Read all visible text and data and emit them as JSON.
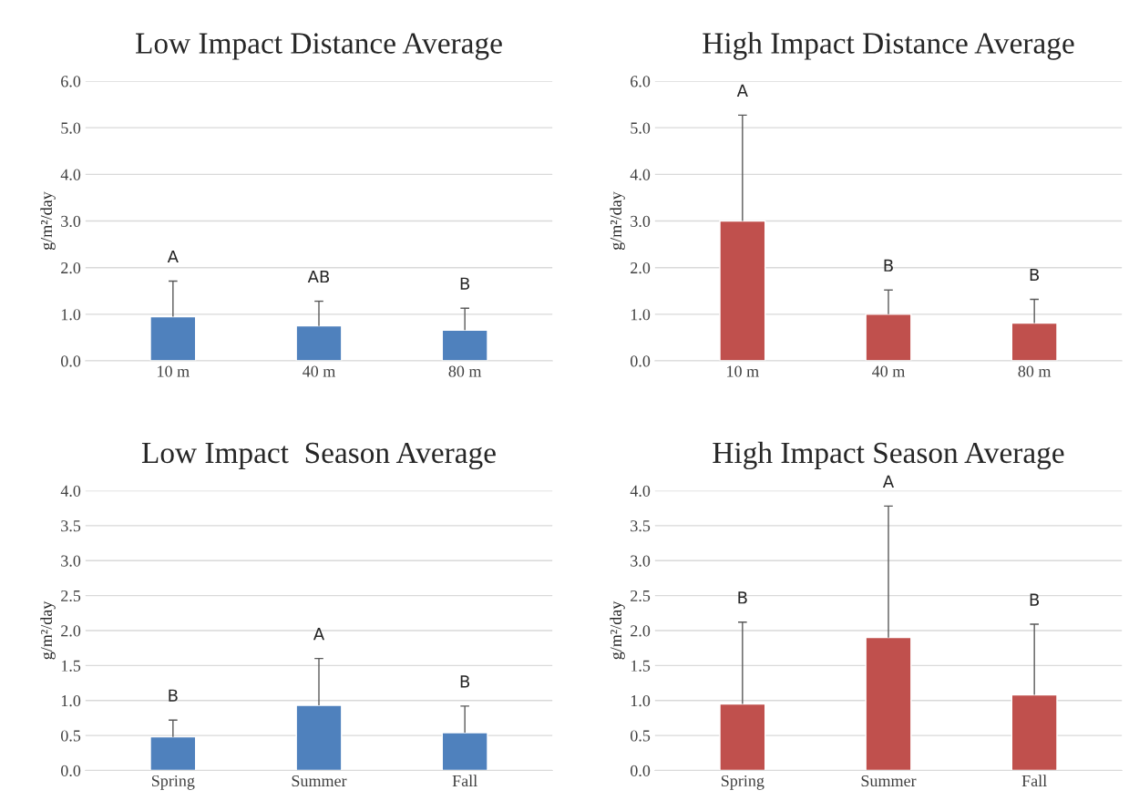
{
  "chart_data": [
    {
      "type": "bar",
      "title": "Low Impact Distance Average",
      "ylabel": "g/m²/day",
      "categories": [
        "10 m",
        "40 m",
        "80 m"
      ],
      "values": [
        0.95,
        0.75,
        0.66
      ],
      "errors": [
        [
          0.95,
          1.71
        ],
        [
          0.75,
          1.28
        ],
        [
          0.66,
          1.13
        ]
      ],
      "color": "#4f81bd",
      "ylim": [
        0,
        6
      ],
      "yticks": [
        {
          "value": 0,
          "label": "0.0"
        },
        {
          "value": 1,
          "label": "1.0"
        },
        {
          "value": 2,
          "label": "2.0"
        },
        {
          "value": 3,
          "label": "3.0"
        },
        {
          "value": 4,
          "label": "4.0"
        },
        {
          "value": 5,
          "label": "5.0"
        },
        {
          "value": 6,
          "label": "6.0"
        }
      ],
      "grid": "y",
      "annotations": [
        "A",
        "AB",
        "B"
      ]
    },
    {
      "type": "bar",
      "title": "High Impact Distance Average",
      "ylabel": "g/m²/day",
      "categories": [
        "10 m",
        "40 m",
        "80 m"
      ],
      "values": [
        3.0,
        1.0,
        0.81
      ],
      "errors": [
        [
          3.0,
          5.27
        ],
        [
          1.0,
          1.52
        ],
        [
          0.81,
          1.32
        ]
      ],
      "color": "#c0504d",
      "ylim": [
        0,
        6
      ],
      "yticks": [
        {
          "value": 0,
          "label": "0.0"
        },
        {
          "value": 1,
          "label": "1.0"
        },
        {
          "value": 2,
          "label": "2.0"
        },
        {
          "value": 3,
          "label": "3.0"
        },
        {
          "value": 4,
          "label": "4.0"
        },
        {
          "value": 5,
          "label": "5.0"
        },
        {
          "value": 6,
          "label": "6.0"
        }
      ],
      "grid": "y",
      "annotations": [
        "A",
        "B",
        "B"
      ]
    },
    {
      "type": "bar",
      "title": "Low Impact  Season Average",
      "ylabel": "g/m²/day",
      "categories": [
        "Spring",
        "Summer",
        "Fall"
      ],
      "values": [
        0.48,
        0.93,
        0.54
      ],
      "errors": [
        [
          0.48,
          0.72
        ],
        [
          0.93,
          1.6
        ],
        [
          0.54,
          0.92
        ]
      ],
      "color": "#4f81bd",
      "ylim": [
        0,
        4
      ],
      "yticks": [
        {
          "value": 0,
          "label": "0.0"
        },
        {
          "value": 0.5,
          "label": "0.5"
        },
        {
          "value": 1,
          "label": "1.0"
        },
        {
          "value": 1.5,
          "label": "1.5"
        },
        {
          "value": 2,
          "label": "2.0"
        },
        {
          "value": 2.5,
          "label": "2.5"
        },
        {
          "value": 3,
          "label": "3.0"
        },
        {
          "value": 3.5,
          "label": "3.5"
        },
        {
          "value": 4,
          "label": "4.0"
        }
      ],
      "grid": "y",
      "annotations": [
        "B",
        "A",
        "B"
      ]
    },
    {
      "type": "bar",
      "title": "High Impact Season Average",
      "ylabel": "g/m²/day",
      "categories": [
        "Spring",
        "Summer",
        "Fall"
      ],
      "values": [
        0.95,
        1.9,
        1.08
      ],
      "errors": [
        [
          0.95,
          2.12
        ],
        [
          1.9,
          3.78
        ],
        [
          1.08,
          2.09
        ]
      ],
      "color": "#c0504d",
      "ylim": [
        0,
        4
      ],
      "yticks": [
        {
          "value": 0,
          "label": "0.0"
        },
        {
          "value": 0.5,
          "label": "0.5"
        },
        {
          "value": 1,
          "label": "1.0"
        },
        {
          "value": 1.5,
          "label": "1.5"
        },
        {
          "value": 2,
          "label": "2.0"
        },
        {
          "value": 2.5,
          "label": "2.5"
        },
        {
          "value": 3,
          "label": "3.0"
        },
        {
          "value": 3.5,
          "label": "3.5"
        },
        {
          "value": 4,
          "label": "4.0"
        }
      ],
      "grid": "y",
      "annotations": [
        "B",
        "A",
        "B"
      ]
    }
  ]
}
